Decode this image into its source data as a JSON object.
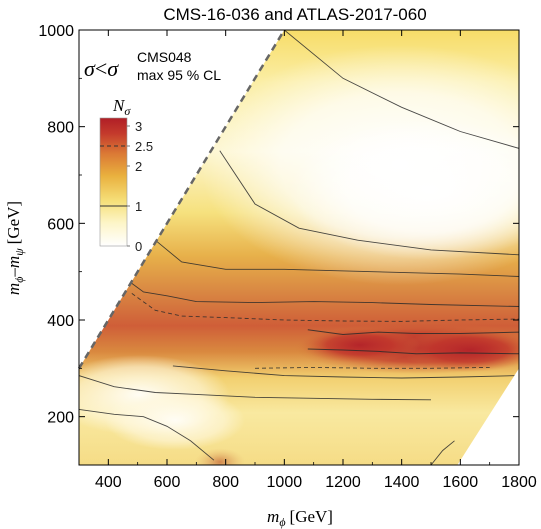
{
  "chart_data": {
    "type": "heatmap",
    "title": "CMS-16-036 and ATLAS-2017-060",
    "xlabel": {
      "symbol": "m",
      "sub": "ϕ",
      "unit": "[GeV]"
    },
    "ylabel": {
      "symbol": "m",
      "sub1": "ϕ",
      "dash": "–",
      "symbol2": "m",
      "sub2": "ψ",
      "unit": "[GeV]"
    },
    "xlim": [
      300,
      1800
    ],
    "ylim": [
      100,
      1000
    ],
    "xticks": [
      "400",
      "600",
      "800",
      "1000",
      "1200",
      "1400",
      "1600",
      "1800"
    ],
    "yticks": [
      "200",
      "400",
      "600",
      "800",
      "1000"
    ],
    "annotation": {
      "sigma": "σ",
      "lt": "<",
      "sigma2": "σ",
      "sup": "CMS048",
      "sub": "max 95 % CL"
    },
    "colorbar": {
      "label": "N",
      "label_sub": "σ",
      "min": 0,
      "max": 3.2,
      "ticks": [
        {
          "value": 3,
          "label": "3",
          "style": "none"
        },
        {
          "value": 2.5,
          "label": "2.5",
          "style": "dashed"
        },
        {
          "value": 2,
          "label": "2",
          "style": "none"
        },
        {
          "value": 1,
          "label": "1",
          "style": "solid"
        },
        {
          "value": 0,
          "label": "0",
          "style": "none"
        }
      ],
      "colors": [
        "#ffffff",
        "#fdf5c8",
        "#f6e07a",
        "#e9b03e",
        "#db7a35",
        "#c43a2c",
        "#b01e26"
      ]
    },
    "diagonal_boundary": {
      "x": [
        300,
        1000
      ],
      "y": [
        300,
        1000
      ]
    },
    "lower_cut": {
      "x": [
        1590,
        1800
      ],
      "y": [
        100,
        300
      ]
    },
    "contours": [
      {
        "level": 1,
        "style": "solid",
        "points": [
          [
            1000,
            1000
          ],
          [
            1200,
            900
          ],
          [
            1400,
            840
          ],
          [
            1600,
            790
          ],
          [
            1800,
            755
          ]
        ]
      },
      {
        "level": 1,
        "style": "solid",
        "points": [
          [
            780,
            750
          ],
          [
            900,
            640
          ],
          [
            1050,
            590
          ],
          [
            1250,
            565
          ],
          [
            1500,
            545
          ],
          [
            1800,
            535
          ]
        ]
      },
      {
        "level": 1,
        "style": "solid",
        "points": [
          [
            560,
            565
          ],
          [
            650,
            520
          ],
          [
            800,
            505
          ],
          [
            1000,
            505
          ],
          [
            1300,
            500
          ],
          [
            1600,
            495
          ],
          [
            1800,
            490
          ]
        ]
      },
      {
        "level": 2,
        "style": "solid",
        "points": [
          [
            470,
            480
          ],
          [
            520,
            458
          ],
          [
            600,
            450
          ],
          [
            700,
            438
          ],
          [
            900,
            436
          ],
          [
            1100,
            438
          ],
          [
            1300,
            436
          ],
          [
            1500,
            432
          ],
          [
            1800,
            428
          ]
        ]
      },
      {
        "level": 2.5,
        "style": "dashed",
        "points": [
          [
            480,
            455
          ],
          [
            560,
            420
          ],
          [
            650,
            408
          ],
          [
            800,
            405
          ],
          [
            1000,
            400
          ],
          [
            1200,
            398
          ],
          [
            1400,
            397
          ],
          [
            1600,
            400
          ],
          [
            1800,
            402
          ]
        ]
      },
      {
        "level": 3,
        "style": "solid",
        "points": [
          [
            1080,
            380
          ],
          [
            1200,
            370
          ],
          [
            1320,
            375
          ],
          [
            1450,
            372
          ],
          [
            1600,
            372
          ],
          [
            1800,
            375
          ]
        ]
      },
      {
        "level": 3,
        "style": "solid",
        "points": [
          [
            1080,
            340
          ],
          [
            1200,
            338
          ],
          [
            1320,
            335
          ],
          [
            1450,
            330
          ],
          [
            1600,
            332
          ],
          [
            1800,
            330
          ]
        ]
      },
      {
        "level": 2.5,
        "style": "dashed",
        "points": [
          [
            900,
            300
          ],
          [
            1100,
            302
          ],
          [
            1300,
            300
          ],
          [
            1500,
            300
          ],
          [
            1700,
            302
          ]
        ]
      },
      {
        "level": 2,
        "style": "solid",
        "points": [
          [
            620,
            305
          ],
          [
            800,
            295
          ],
          [
            1000,
            285
          ],
          [
            1200,
            282
          ],
          [
            1400,
            280
          ],
          [
            1600,
            282
          ],
          [
            1800,
            285
          ]
        ]
      },
      {
        "level": 1,
        "style": "solid",
        "points": [
          [
            300,
            285
          ],
          [
            420,
            262
          ],
          [
            560,
            250
          ],
          [
            700,
            246
          ],
          [
            900,
            240
          ],
          [
            1100,
            238
          ],
          [
            1300,
            236
          ],
          [
            1500,
            235
          ]
        ]
      },
      {
        "level": 1,
        "style": "solid",
        "points": [
          [
            300,
            215
          ],
          [
            420,
            205
          ],
          [
            520,
            200
          ],
          [
            600,
            180
          ],
          [
            680,
            150
          ],
          [
            760,
            110
          ]
        ]
      },
      {
        "level": 1,
        "style": "solid",
        "points": [
          [
            1500,
            100
          ],
          [
            1540,
            130
          ],
          [
            1580,
            150
          ]
        ]
      }
    ]
  }
}
